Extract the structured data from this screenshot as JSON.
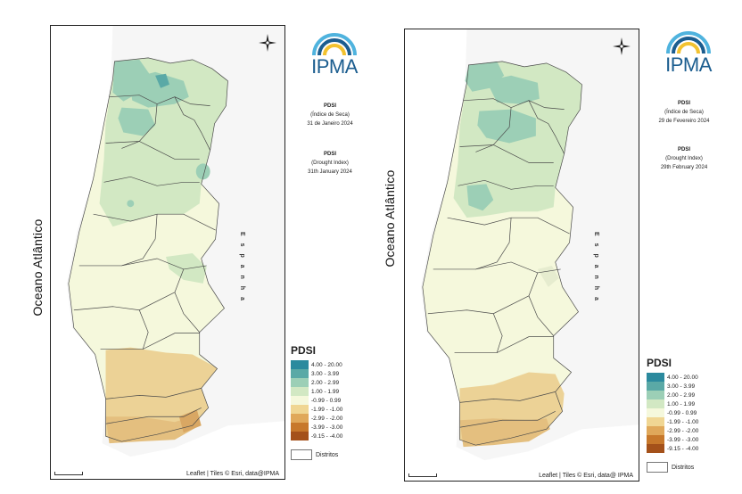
{
  "maps": [
    {
      "ocean_label": "Oceano Atlântico",
      "country_label": "E s p a n h a",
      "attribution": "Leaflet | Tiles © Esri, data@IPMA",
      "logo_text": "IPMA",
      "info_pt": [
        "PDSI",
        "(Índice de Seca)",
        "31 de Janeiro 2024"
      ],
      "info_en": [
        "PDSI",
        "(Drought Index)",
        "31th January 2024"
      ]
    },
    {
      "ocean_label": "Oceano Atlântico",
      "country_label": "E s p a n h a",
      "attribution": "Leaflet | Tiles © Esri, data@ IPMA",
      "logo_text": "IPMA",
      "info_pt": [
        "PDSI",
        "(Índice de Seca)",
        "29 de Fevereiro 2024"
      ],
      "info_en": [
        "PDSI",
        "(Drought Index)",
        "29th February 2024"
      ]
    }
  ],
  "legend": {
    "title": "PDSI",
    "districts_label": "Distritos",
    "classes": [
      {
        "label": "4.00 - 20.00",
        "color": "#2b8a9e"
      },
      {
        "label": "3.00 - 3.99",
        "color": "#5aa9a6"
      },
      {
        "label": "2.00 - 2.99",
        "color": "#9ccfb6"
      },
      {
        "label": "1.00 - 1.99",
        "color": "#d2e8c3"
      },
      {
        "label": "-0.99 - 0.99",
        "color": "#f5f8dc"
      },
      {
        "label": "-1.99 - -1.00",
        "color": "#f0d693"
      },
      {
        "label": "-2.99 - -2.00",
        "color": "#e0a85a"
      },
      {
        "label": "-3.99 - -3.00",
        "color": "#c7782b"
      },
      {
        "label": "-9.15 - -4.00",
        "color": "#a4511a"
      }
    ]
  },
  "colors": {
    "wet_high": "#6fb3a5",
    "wet": "#9ccfb6",
    "moist": "#d2e8c3",
    "normal": "#f5f8dc",
    "dry": "#ecd296",
    "drier": "#dfb173",
    "district_line": "#4a4a4a",
    "logo_blue": "#1b5d8f",
    "logo_yellow": "#f2c230",
    "logo_cyan": "#4fb3de"
  }
}
